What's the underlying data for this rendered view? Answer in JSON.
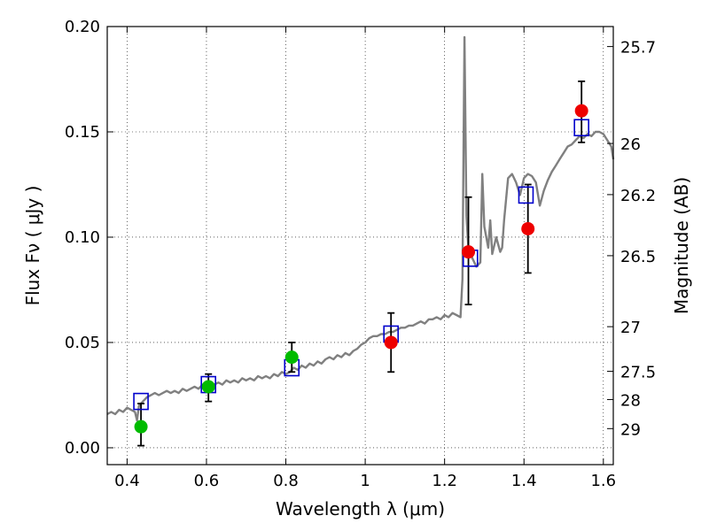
{
  "chart_data": {
    "type": "scatter",
    "xlabel": "Wavelength  λ (μm)",
    "ylabel": "Flux  Fν  ( μJy )",
    "y2label": "Magnitude (AB)",
    "xlim": [
      0.35,
      1.625
    ],
    "ylim": [
      -0.008,
      0.2
    ],
    "grid": true,
    "x_ticks": [
      0.4,
      0.6,
      0.8,
      1.0,
      1.2,
      1.4,
      1.6
    ],
    "x_tick_labels": [
      "0.4",
      "0.6",
      "0.8",
      "1",
      "1.2",
      "1.4",
      "1.6"
    ],
    "y_ticks": [
      0.0,
      0.05,
      0.1,
      0.15,
      0.2
    ],
    "y_tick_labels": [
      "0.00",
      "0.05",
      "0.10",
      "0.15",
      "0.20"
    ],
    "y2_ticks": [
      {
        "label": "25.7",
        "flux": 0.1905
      },
      {
        "label": "26",
        "flux": 0.1445
      },
      {
        "label": "26.2",
        "flux": 0.1202
      },
      {
        "label": "26.5",
        "flux": 0.0912
      },
      {
        "label": "27",
        "flux": 0.0575
      },
      {
        "label": "27.5",
        "flux": 0.0363
      },
      {
        "label": "28",
        "flux": 0.0229
      },
      {
        "label": "29",
        "flux": 0.0091
      }
    ],
    "series": [
      {
        "name": "model_spectrum",
        "style": "line",
        "color": "#808080",
        "points": [
          [
            0.35,
            0.016
          ],
          [
            0.36,
            0.017
          ],
          [
            0.37,
            0.016
          ],
          [
            0.38,
            0.018
          ],
          [
            0.39,
            0.017
          ],
          [
            0.4,
            0.019
          ],
          [
            0.41,
            0.018
          ],
          [
            0.42,
            0.017
          ],
          [
            0.425,
            0.013
          ],
          [
            0.43,
            0.02
          ],
          [
            0.44,
            0.022
          ],
          [
            0.45,
            0.024
          ],
          [
            0.46,
            0.025
          ],
          [
            0.47,
            0.026
          ],
          [
            0.48,
            0.025
          ],
          [
            0.49,
            0.026
          ],
          [
            0.5,
            0.027
          ],
          [
            0.51,
            0.026
          ],
          [
            0.52,
            0.027
          ],
          [
            0.53,
            0.026
          ],
          [
            0.54,
            0.028
          ],
          [
            0.55,
            0.027
          ],
          [
            0.56,
            0.028
          ],
          [
            0.57,
            0.029
          ],
          [
            0.58,
            0.028
          ],
          [
            0.59,
            0.03
          ],
          [
            0.6,
            0.029
          ],
          [
            0.61,
            0.031
          ],
          [
            0.62,
            0.03
          ],
          [
            0.63,
            0.031
          ],
          [
            0.64,
            0.03
          ],
          [
            0.65,
            0.032
          ],
          [
            0.66,
            0.031
          ],
          [
            0.67,
            0.032
          ],
          [
            0.68,
            0.031
          ],
          [
            0.69,
            0.033
          ],
          [
            0.7,
            0.032
          ],
          [
            0.71,
            0.033
          ],
          [
            0.72,
            0.032
          ],
          [
            0.73,
            0.034
          ],
          [
            0.74,
            0.033
          ],
          [
            0.75,
            0.034
          ],
          [
            0.76,
            0.033
          ],
          [
            0.77,
            0.035
          ],
          [
            0.78,
            0.034
          ],
          [
            0.79,
            0.036
          ],
          [
            0.8,
            0.035
          ],
          [
            0.81,
            0.036
          ],
          [
            0.82,
            0.038
          ],
          [
            0.83,
            0.037
          ],
          [
            0.84,
            0.039
          ],
          [
            0.85,
            0.038
          ],
          [
            0.86,
            0.04
          ],
          [
            0.87,
            0.039
          ],
          [
            0.88,
            0.041
          ],
          [
            0.89,
            0.04
          ],
          [
            0.9,
            0.042
          ],
          [
            0.91,
            0.043
          ],
          [
            0.92,
            0.042
          ],
          [
            0.93,
            0.044
          ],
          [
            0.94,
            0.043
          ],
          [
            0.95,
            0.045
          ],
          [
            0.96,
            0.044
          ],
          [
            0.97,
            0.046
          ],
          [
            0.98,
            0.047
          ],
          [
            0.99,
            0.049
          ],
          [
            1.0,
            0.05
          ],
          [
            1.01,
            0.052
          ],
          [
            1.02,
            0.053
          ],
          [
            1.03,
            0.053
          ],
          [
            1.04,
            0.054
          ],
          [
            1.05,
            0.054
          ],
          [
            1.06,
            0.055
          ],
          [
            1.07,
            0.055
          ],
          [
            1.08,
            0.056
          ],
          [
            1.09,
            0.057
          ],
          [
            1.1,
            0.057
          ],
          [
            1.11,
            0.058
          ],
          [
            1.12,
            0.058
          ],
          [
            1.13,
            0.059
          ],
          [
            1.14,
            0.06
          ],
          [
            1.15,
            0.059
          ],
          [
            1.16,
            0.061
          ],
          [
            1.17,
            0.061
          ],
          [
            1.18,
            0.062
          ],
          [
            1.19,
            0.061
          ],
          [
            1.2,
            0.063
          ],
          [
            1.21,
            0.062
          ],
          [
            1.22,
            0.064
          ],
          [
            1.23,
            0.063
          ],
          [
            1.24,
            0.062
          ],
          [
            1.245,
            0.08
          ],
          [
            1.25,
            0.195
          ],
          [
            1.255,
            0.11
          ],
          [
            1.26,
            0.095
          ],
          [
            1.27,
            0.09
          ],
          [
            1.28,
            0.086
          ],
          [
            1.29,
            0.088
          ],
          [
            1.295,
            0.13
          ],
          [
            1.3,
            0.105
          ],
          [
            1.31,
            0.095
          ],
          [
            1.315,
            0.108
          ],
          [
            1.32,
            0.092
          ],
          [
            1.33,
            0.1
          ],
          [
            1.34,
            0.093
          ],
          [
            1.345,
            0.095
          ],
          [
            1.35,
            0.108
          ],
          [
            1.36,
            0.128
          ],
          [
            1.37,
            0.13
          ],
          [
            1.38,
            0.126
          ],
          [
            1.39,
            0.12
          ],
          [
            1.4,
            0.128
          ],
          [
            1.41,
            0.13
          ],
          [
            1.42,
            0.129
          ],
          [
            1.43,
            0.126
          ],
          [
            1.44,
            0.115
          ],
          [
            1.45,
            0.122
          ],
          [
            1.46,
            0.127
          ],
          [
            1.47,
            0.131
          ],
          [
            1.48,
            0.134
          ],
          [
            1.49,
            0.137
          ],
          [
            1.5,
            0.14
          ],
          [
            1.51,
            0.143
          ],
          [
            1.52,
            0.144
          ],
          [
            1.53,
            0.146
          ],
          [
            1.54,
            0.148
          ],
          [
            1.55,
            0.147
          ],
          [
            1.56,
            0.149
          ],
          [
            1.57,
            0.148
          ],
          [
            1.58,
            0.15
          ],
          [
            1.59,
            0.15
          ],
          [
            1.6,
            0.149
          ],
          [
            1.61,
            0.146
          ],
          [
            1.62,
            0.143
          ],
          [
            1.625,
            0.137
          ]
        ]
      },
      {
        "name": "model_bandpass_flux",
        "style": "open-square",
        "color": "#0000cc",
        "points": [
          [
            0.435,
            0.022
          ],
          [
            0.605,
            0.03
          ],
          [
            0.815,
            0.038
          ],
          [
            1.065,
            0.054
          ],
          [
            1.265,
            0.09
          ],
          [
            1.405,
            0.12
          ],
          [
            1.545,
            0.152
          ]
        ]
      },
      {
        "name": "optical_detections",
        "style": "filled-circle",
        "color": "#00bb00",
        "points": [
          [
            0.435,
            0.01
          ],
          [
            0.605,
            0.029
          ],
          [
            0.815,
            0.043
          ]
        ]
      },
      {
        "name": "infrared_detections",
        "style": "filled-circle",
        "color": "#ee0000",
        "points": [
          [
            1.065,
            0.05
          ],
          [
            1.26,
            0.093
          ],
          [
            1.41,
            0.104
          ],
          [
            1.545,
            0.16
          ]
        ]
      },
      {
        "name": "error_bars",
        "style": "errorbar",
        "color": "#000000",
        "points": [
          [
            0.435,
            0.001,
            0.021
          ],
          [
            0.605,
            0.022,
            0.035
          ],
          [
            0.815,
            0.036,
            0.05
          ],
          [
            1.065,
            0.036,
            0.064
          ],
          [
            1.26,
            0.068,
            0.119
          ],
          [
            1.41,
            0.083,
            0.125
          ],
          [
            1.545,
            0.145,
            0.174
          ]
        ]
      }
    ]
  }
}
